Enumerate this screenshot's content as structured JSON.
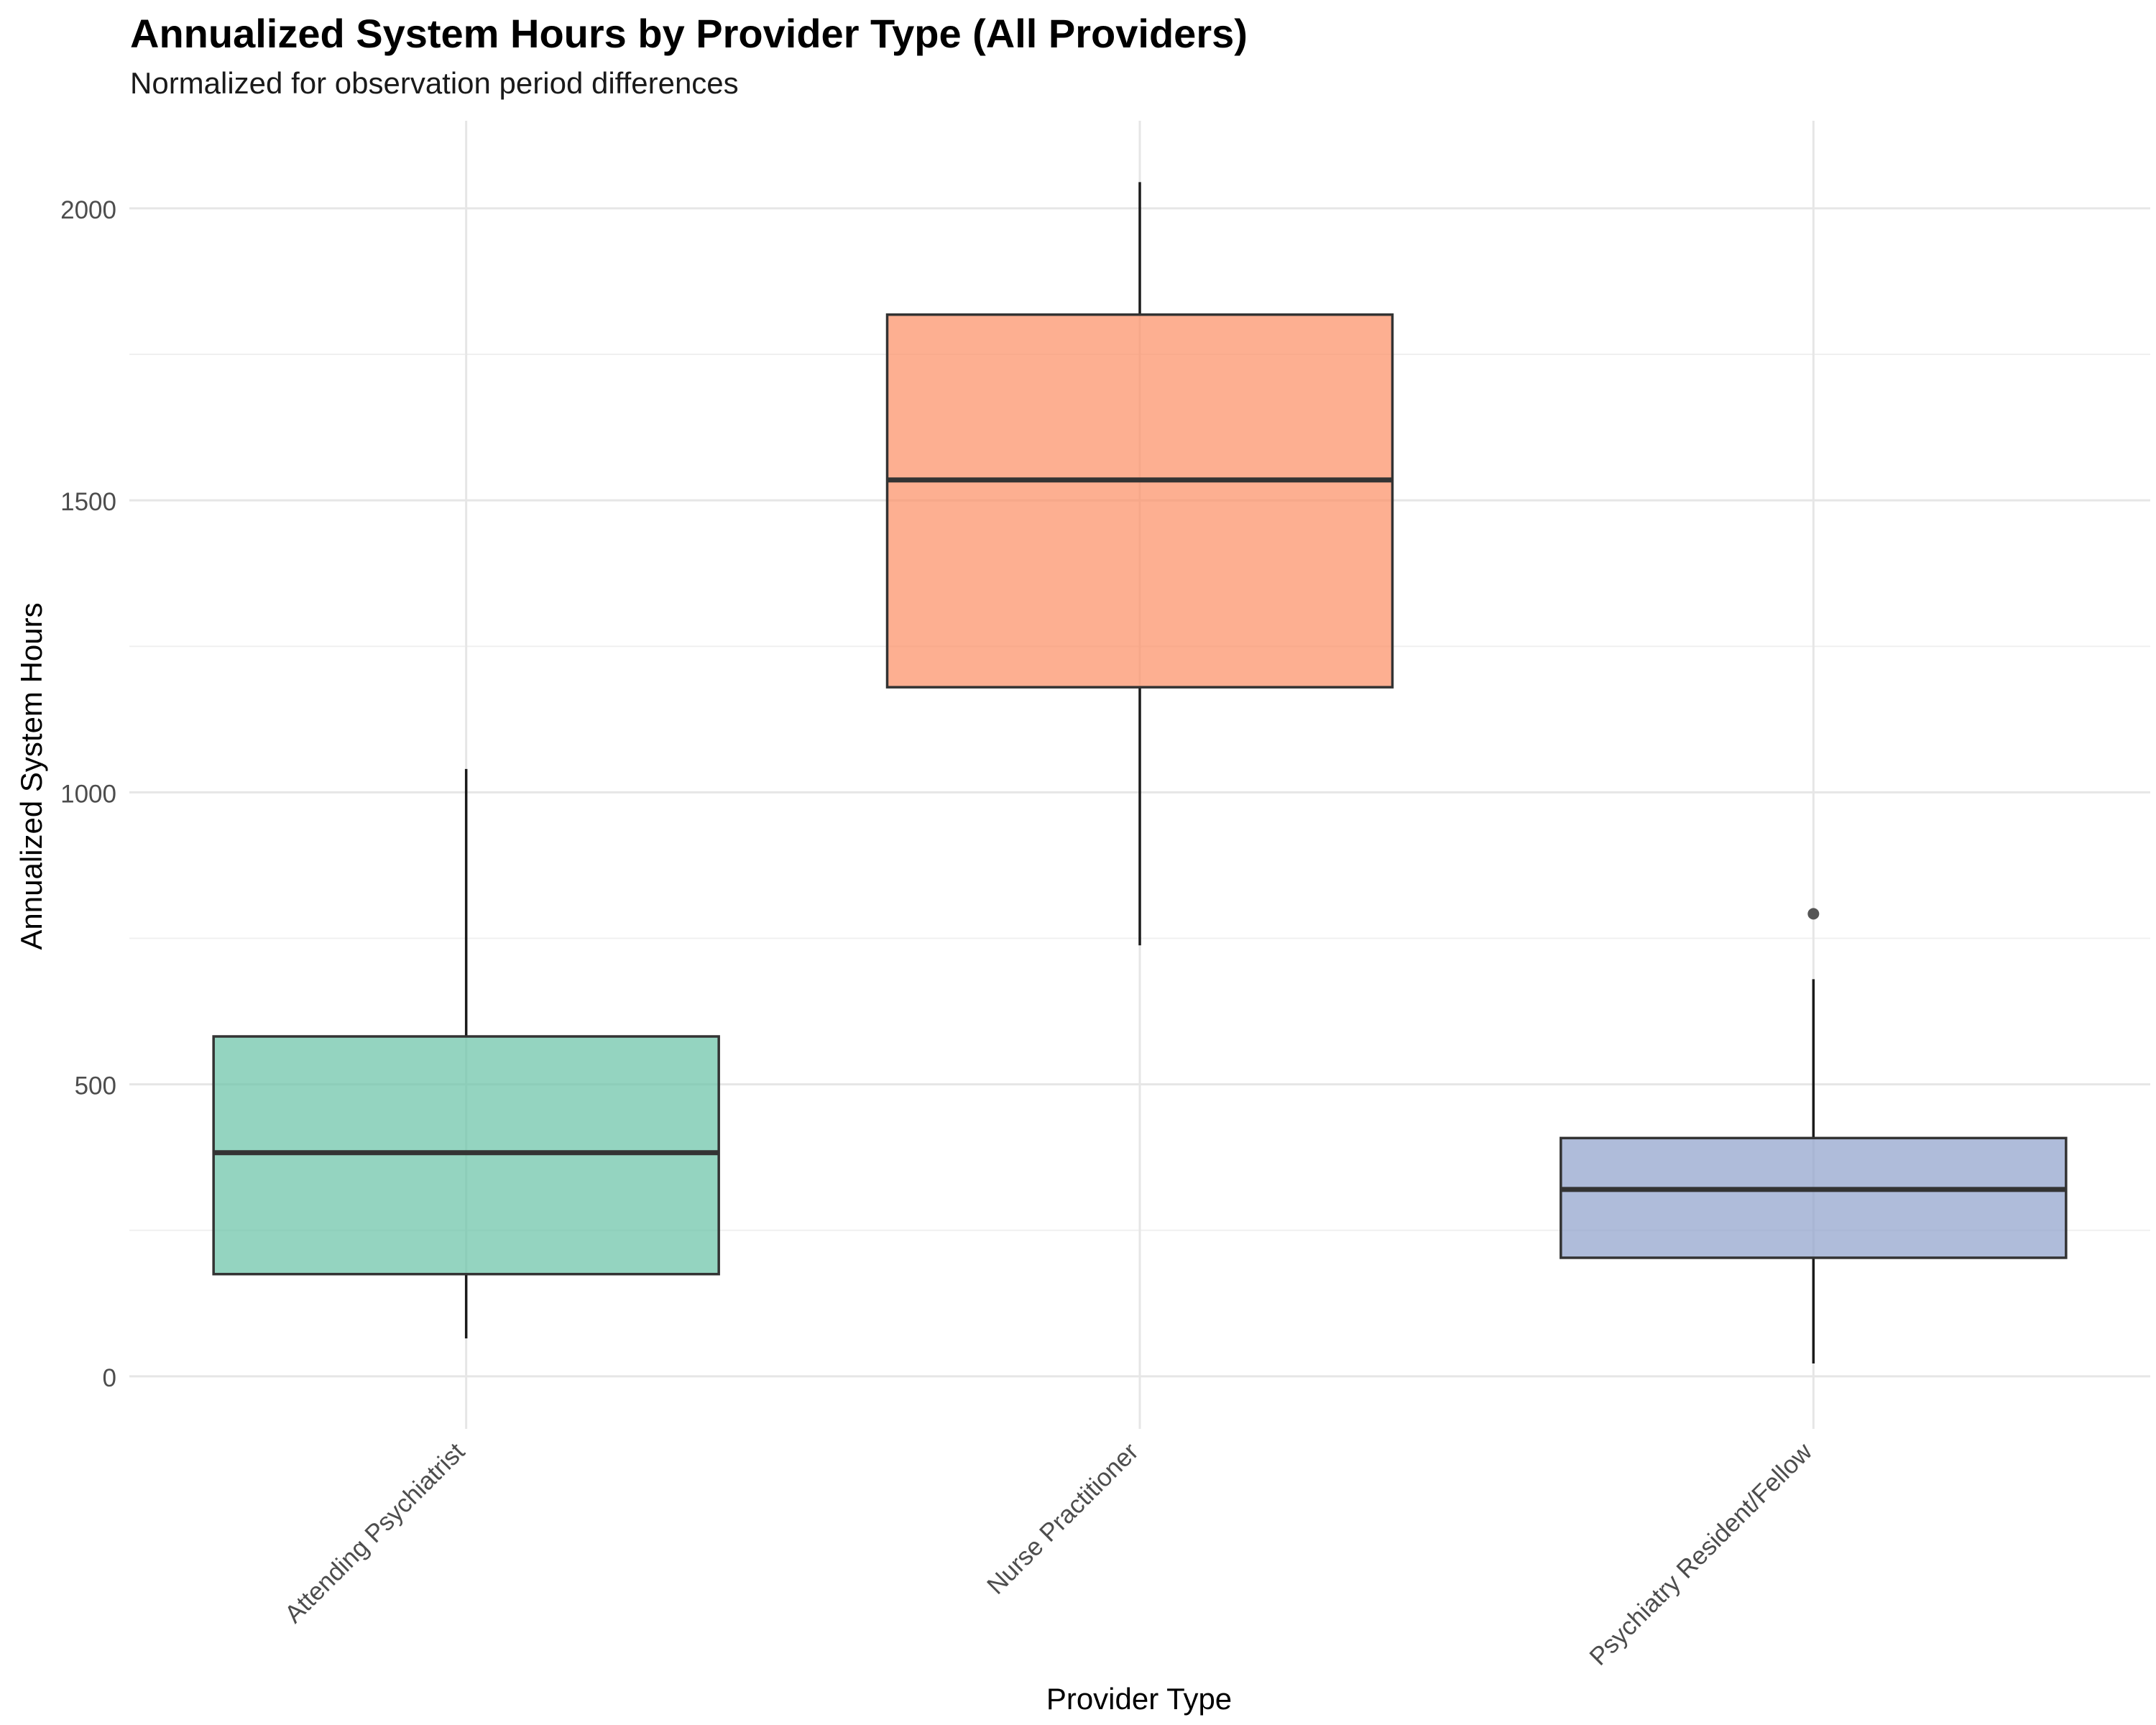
{
  "chart_data": {
    "type": "box",
    "title": "Annualized System Hours by Provider Type (All Providers)",
    "subtitle": "Normalized for observation period differences",
    "xlabel": "Provider Type",
    "ylabel": "Annualized System Hours",
    "ylim": [
      -90,
      2150
    ],
    "y_ticks": [
      0,
      500,
      1000,
      1500,
      2000
    ],
    "grid": true,
    "categories": [
      "Attending Psychiatrist",
      "Nurse Practitioner",
      "Psychiatry Resident/Fellow"
    ],
    "boxes": [
      {
        "category": "Attending Psychiatrist",
        "whisker_low": 65,
        "q1": 175,
        "median": 383,
        "q3": 582,
        "whisker_high": 1040,
        "outliers": [],
        "color": "#66c2a5"
      },
      {
        "category": "Nurse Practitioner",
        "whisker_low": 738,
        "q1": 1180,
        "median": 1535,
        "q3": 1818,
        "whisker_high": 2045,
        "outliers": [],
        "color": "#fc8d62"
      },
      {
        "category": "Psychiatry Resident/Fellow",
        "whisker_low": 22,
        "q1": 203,
        "median": 320,
        "q3": 408,
        "whisker_high": 680,
        "outliers": [
          792
        ],
        "color": "#8da0cb"
      }
    ]
  }
}
